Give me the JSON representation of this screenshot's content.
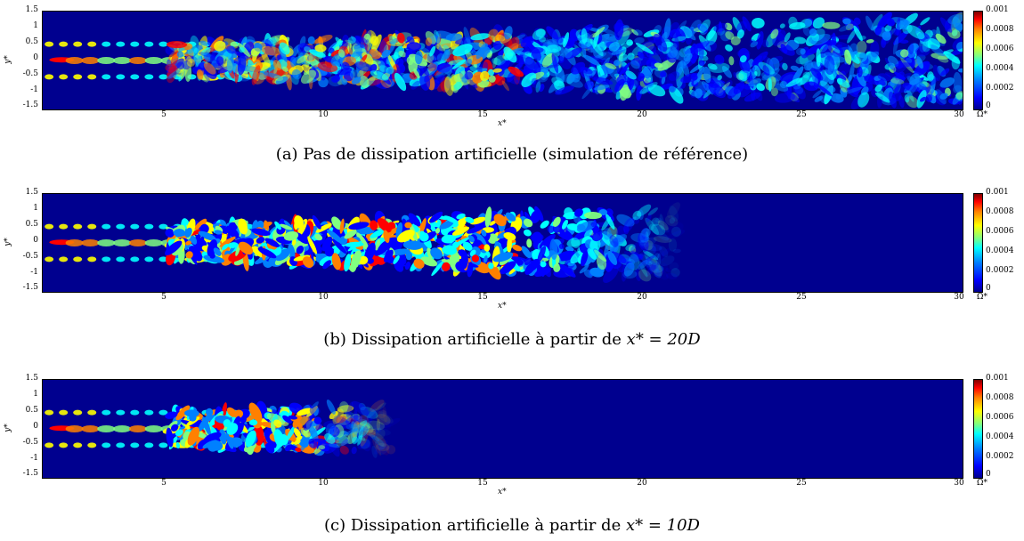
{
  "figure": {
    "y_axis_label": "y*",
    "x_axis_label": "x*",
    "y_ticks": [
      "1.5",
      "1",
      "0.5",
      "0",
      "-0.5",
      "-1",
      "-1.5"
    ],
    "x_ticks": [
      "5",
      "10",
      "15",
      "20",
      "25",
      "30"
    ],
    "colorbar_ticks": [
      "0.001",
      "0.0008",
      "0.0006",
      "0.0004",
      "0.0002",
      "0"
    ],
    "colorbar_unit": "Ω*",
    "colormap": [
      "#00008f",
      "#0000ff",
      "#00ffff",
      "#ffff00",
      "#ff0000",
      "#800000"
    ]
  },
  "panels": [
    {
      "caption_prefix": "(a)",
      "caption_text": "Pas de dissipation artificielle (simulation de référence)",
      "caption_math": "",
      "extent_x": 30
    },
    {
      "caption_prefix": "(b)",
      "caption_text": "Dissipation artificielle à partir de",
      "caption_math": "x* = 20D",
      "extent_x": 21
    },
    {
      "caption_prefix": "(c)",
      "caption_text": "Dissipation artificielle à partir de",
      "caption_math": "x* = 10D",
      "extent_x": 12
    }
  ]
}
